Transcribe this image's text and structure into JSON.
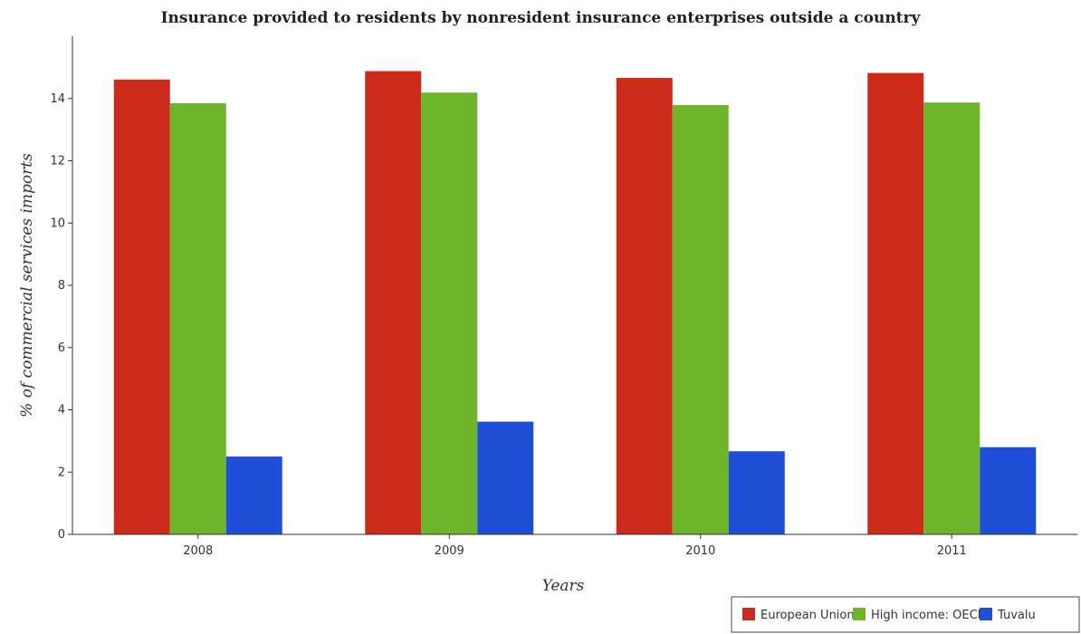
{
  "chart_data": {
    "type": "bar",
    "title": "Insurance provided to residents by nonresident insurance enterprises outside a country",
    "xlabel": "Years",
    "ylabel": "% of commercial services imports",
    "categories": [
      "2008",
      "2009",
      "2010",
      "2011"
    ],
    "ylim": [
      0,
      16
    ],
    "yticks": [
      0,
      2,
      4,
      6,
      8,
      10,
      12,
      14
    ],
    "series": [
      {
        "name": "European Union",
        "color": "#cc2a1a",
        "values": [
          14.61,
          14.88,
          14.66,
          14.82
        ]
      },
      {
        "name": "High income: OECD",
        "color": "#6fb52c",
        "values": [
          13.85,
          14.19,
          13.79,
          13.87
        ]
      },
      {
        "name": "Tuvalu",
        "color": "#1f4fd6",
        "values": [
          2.5,
          3.62,
          2.67,
          2.8
        ]
      }
    ],
    "grid": false,
    "legend_position": "bottom-right"
  }
}
